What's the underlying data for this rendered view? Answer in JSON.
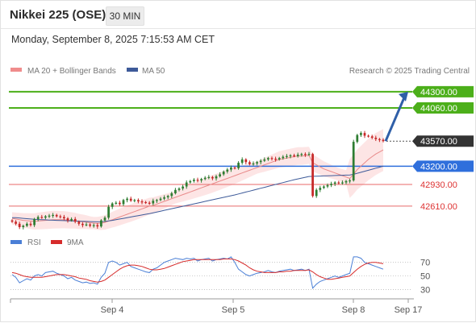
{
  "header": {
    "title": "Nikkei 225 (OSE)",
    "timeframe": "30 MIN"
  },
  "date_text": "Monday, September 8, 2025 7:15:53 AM CET",
  "legend": {
    "ma20": "MA 20 + Bollinger Bands",
    "ma50": "MA 50",
    "credit": "Research © 2025 Trading Central"
  },
  "rsi_legend": {
    "rsi": "RSI",
    "ma9": "9MA"
  },
  "colors": {
    "up": "#2e7d32",
    "down": "#c62828",
    "ma20": "#e88a8a",
    "ma50": "#3d5a99",
    "band": "#fde0e0",
    "resistance": "#4caf1a",
    "support_blue": "#2f6fdc",
    "support_red": "#e86a6a",
    "pivot": "#333333",
    "rsi": "#4a7fd6",
    "rsi_ma": "#d62b2b"
  },
  "chart_data": {
    "type": "candlestick",
    "title": "Nikkei 225 (OSE)",
    "interval": "30 MIN",
    "x_ticks": [
      "Sep 4",
      "Sep 5",
      "Sep 8",
      "Sep 17"
    ],
    "ylim": [
      42300,
      44500
    ],
    "levels": [
      {
        "value": 44300,
        "label": "44300.00",
        "style": "resistance"
      },
      {
        "value": 44060,
        "label": "44060.00",
        "style": "resistance"
      },
      {
        "value": 43570,
        "label": "43570.00",
        "style": "pivot"
      },
      {
        "value": 43200,
        "label": "43200.00",
        "style": "support_blue"
      },
      {
        "value": 42930,
        "label": "42930.00",
        "style": "support_red"
      },
      {
        "value": 42610,
        "label": "42610.00",
        "style": "support_red"
      }
    ],
    "last_price": 43570,
    "target": 44300,
    "close_series": [
      42380,
      42350,
      42300,
      42320,
      42350,
      42330,
      42420,
      42450,
      42440,
      42460,
      42470,
      42480,
      42460,
      42450,
      42430,
      42400,
      42420,
      42380,
      42350,
      42330,
      42340,
      42320,
      42330,
      42310,
      42400,
      42440,
      42600,
      42650,
      42660,
      42640,
      42700,
      42720,
      42690,
      42700,
      42680,
      42670,
      42660,
      42650,
      42690,
      42700,
      42720,
      42740,
      42760,
      42800,
      42850,
      42870,
      42900,
      42960,
      42980,
      43000,
      42990,
      43010,
      43030,
      43040,
      43020,
      43050,
      43080,
      43120,
      43150,
      43180,
      43170,
      43250,
      43300,
      43260,
      43230,
      43240,
      43260,
      43280,
      43300,
      43320,
      43310,
      43300,
      43320,
      43340,
      43350,
      43360,
      43350,
      43370,
      43380,
      43370,
      43380,
      42760,
      42850,
      42880,
      42900,
      42920,
      42940,
      42960,
      42950,
      42960,
      42980,
      42990,
      43560,
      43660,
      43690,
      43650,
      43640,
      43620,
      43600,
      43590,
      43570
    ],
    "ma20_series": [
      42430,
      42420,
      42410,
      42400,
      42395,
      42390,
      42385,
      42390,
      42395,
      42400,
      42405,
      42410,
      42410,
      42410,
      42410,
      42405,
      42400,
      42395,
      42385,
      42380,
      42375,
      42365,
      42360,
      42355,
      42360,
      42370,
      42390,
      42410,
      42430,
      42450,
      42470,
      42490,
      42510,
      42530,
      42550,
      42570,
      42590,
      42610,
      42620,
      42640,
      42660,
      42680,
      42700,
      42720,
      42740,
      42760,
      42780,
      42800,
      42820,
      42840,
      42860,
      42880,
      42900,
      42920,
      42940,
      42960,
      42980,
      43000,
      43020,
      43040,
      43060,
      43080,
      43100,
      43120,
      43140,
      43160,
      43180,
      43200,
      43220,
      43240,
      43260,
      43280,
      43300,
      43310,
      43320,
      43330,
      43340,
      43350,
      43350,
      43355,
      43360,
      43250,
      43220,
      43190,
      43160,
      43140,
      43120,
      43100,
      43080,
      43060,
      43040,
      43020,
      43080,
      43150,
      43200,
      43250,
      43300,
      43340,
      43380,
      43410,
      43440
    ],
    "ma50_series": [
      42440,
      42440,
      42435,
      42430,
      42425,
      42420,
      42415,
      42412,
      42410,
      42408,
      42405,
      42402,
      42400,
      42398,
      42396,
      42394,
      42392,
      42390,
      42388,
      42386,
      42384,
      42382,
      42380,
      42378,
      42380,
      42385,
      42392,
      42400,
      42410,
      42420,
      42430,
      42440,
      42450,
      42460,
      42470,
      42480,
      42490,
      42500,
      42512,
      42524,
      42536,
      42548,
      42560,
      42572,
      42584,
      42596,
      42608,
      42620,
      42632,
      42644,
      42656,
      42668,
      42680,
      42692,
      42704,
      42716,
      42728,
      42740,
      42752,
      42764,
      42776,
      42790,
      42804,
      42818,
      42832,
      42846,
      42860,
      42874,
      42888,
      42902,
      42916,
      42930,
      42944,
      42958,
      42972,
      42986,
      43000,
      43012,
      43024,
      43036,
      43048,
      43050,
      43052,
      43054,
      43056,
      43058,
      43060,
      43062,
      43064,
      43066,
      43068,
      43070,
      43080,
      43095,
      43110,
      43125,
      43140,
      43155,
      43170,
      43185,
      43200
    ],
    "rsi_series": [
      52,
      48,
      40,
      43,
      46,
      44,
      50,
      52,
      50,
      55,
      56,
      57,
      54,
      52,
      50,
      46,
      48,
      44,
      42,
      40,
      41,
      39,
      40,
      38,
      48,
      54,
      70,
      72,
      70,
      66,
      68,
      70,
      64,
      62,
      60,
      58,
      56,
      55,
      60,
      62,
      66,
      70,
      72,
      74,
      76,
      75,
      74,
      76,
      75,
      76,
      72,
      74,
      75,
      76,
      72,
      74,
      75,
      76,
      75,
      78,
      70,
      60,
      56,
      52,
      50,
      52,
      54,
      55,
      56,
      58,
      56,
      55,
      57,
      58,
      59,
      60,
      58,
      59,
      60,
      58,
      60,
      32,
      38,
      42,
      44,
      46,
      48,
      50,
      48,
      50,
      52,
      54,
      78,
      78,
      76,
      70,
      68,
      66,
      64,
      62,
      60
    ],
    "rsi_ma_series": [
      55,
      54,
      52,
      50,
      49,
      48,
      48,
      48,
      48,
      49,
      50,
      51,
      52,
      52,
      52,
      51,
      50,
      49,
      47,
      46,
      45,
      43,
      42,
      41,
      42,
      44,
      48,
      52,
      56,
      60,
      63,
      65,
      66,
      66,
      65,
      64,
      62,
      60,
      59,
      59,
      60,
      61,
      63,
      65,
      67,
      69,
      71,
      72,
      73,
      74,
      74,
      74,
      74,
      74,
      74,
      74,
      74,
      75,
      75,
      75,
      74,
      72,
      69,
      66,
      62,
      59,
      57,
      56,
      55,
      55,
      55,
      55,
      56,
      56,
      57,
      57,
      58,
      58,
      58,
      58,
      59,
      56,
      52,
      49,
      47,
      45,
      45,
      46,
      47,
      48,
      49,
      50,
      55,
      60,
      64,
      67,
      69,
      70,
      70,
      69,
      68
    ],
    "rsi_ticks": [
      70,
      50,
      30
    ],
    "rsi_ylim": [
      20,
      85
    ]
  }
}
